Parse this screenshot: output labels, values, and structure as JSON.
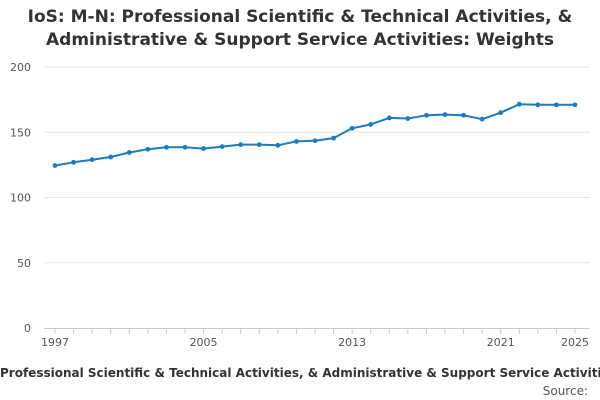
{
  "chart_data": {
    "type": "line",
    "title": "IoS: M-N: Professional Scientific & Technical Activities, & Administrative & Support Service Activities: Weights",
    "legend": "Professional Scientific & Technical Activities, & Administrative & Support Service Activities",
    "source_label": "Source:",
    "ylim": [
      0,
      200
    ],
    "yticks": [
      0,
      50,
      100,
      150,
      200
    ],
    "xlim": [
      1997,
      2025
    ],
    "xticks": [
      1997,
      2005,
      2013,
      2021,
      2025
    ],
    "grid": true,
    "line_color": "#1a7dbf",
    "series": [
      {
        "x": [
          1997,
          1998,
          1999,
          2000,
          2001,
          2002,
          2003,
          2004,
          2005,
          2006,
          2007,
          2008,
          2009,
          2010,
          2011,
          2012,
          2013,
          2014,
          2015,
          2016,
          2017,
          2018,
          2019,
          2020,
          2021,
          2022,
          2023,
          2024,
          2025
        ],
        "values": [
          124.5,
          127,
          129,
          131,
          134.5,
          137,
          138.5,
          138.5,
          137.5,
          139,
          140.5,
          140.5,
          140,
          143,
          143.5,
          145.5,
          153,
          156,
          161,
          160.5,
          163,
          163.5,
          163,
          160,
          165,
          171.5,
          171,
          171,
          171
        ]
      }
    ]
  }
}
